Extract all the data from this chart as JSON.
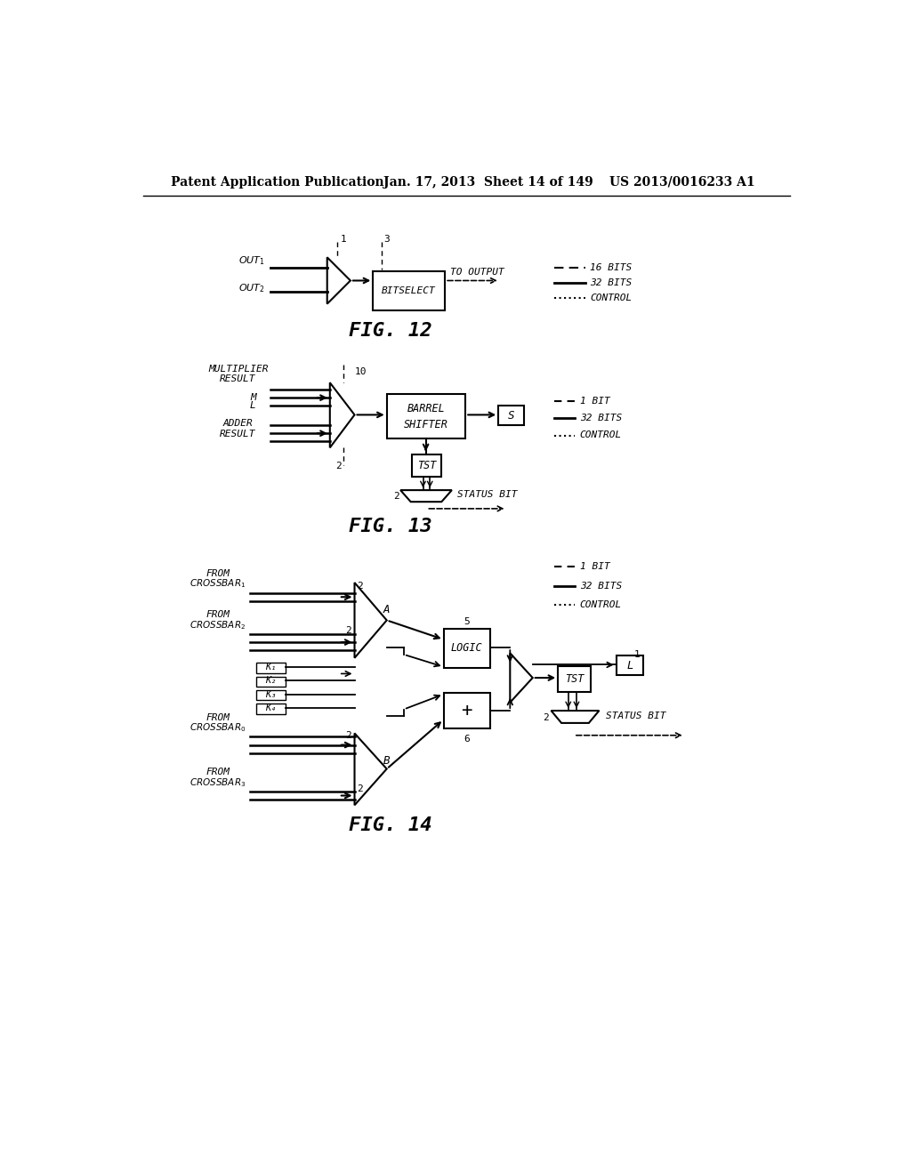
{
  "header_left": "Patent Application Publication",
  "header_mid": "Jan. 17, 2013  Sheet 14 of 149",
  "header_right": "US 2013/0016233 A1",
  "bg_color": "#ffffff",
  "fig12_label": "FIG. 12",
  "fig13_label": "FIG. 13",
  "fig14_label": "FIG. 14"
}
